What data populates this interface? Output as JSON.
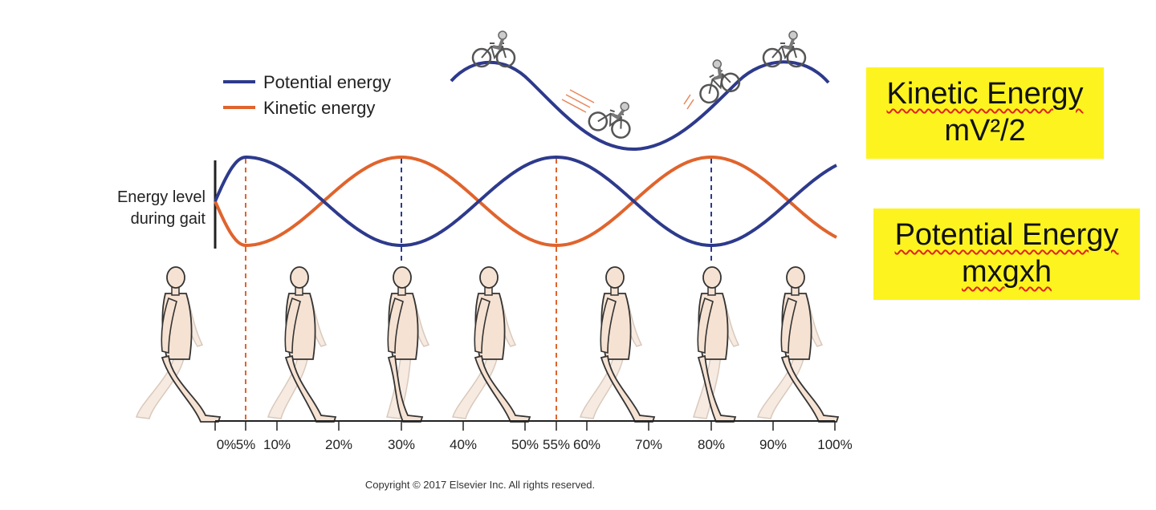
{
  "legend": {
    "items": [
      {
        "label": "Potential energy",
        "color": "#2d3a8c"
      },
      {
        "label": "Kinetic energy",
        "color": "#e0642d"
      }
    ]
  },
  "y_axis_label": [
    "Energy level",
    "during gait"
  ],
  "x_ticks": [
    "0%",
    "5%",
    "10%",
    "20%",
    "30%",
    "40%",
    "50%",
    "55%",
    "60%",
    "70%",
    "80%",
    "90%",
    "100%"
  ],
  "copyright": "Copyright © 2017 Elsevier Inc. All rights reserved.",
  "boxes": {
    "kinetic": {
      "line1": "Kinetic Energy",
      "line2": "mV²/2"
    },
    "potential": {
      "line1": "Potential Energy",
      "line2": "mxgxh"
    }
  },
  "colors": {
    "potential": "#2d3a8c",
    "kinetic": "#e0642d",
    "highlight": "#fdf41f",
    "figure_fill": "#f6e2d2"
  },
  "icons": {
    "bicycle": "bicycle-icon",
    "walker": "walking-person-icon"
  }
}
